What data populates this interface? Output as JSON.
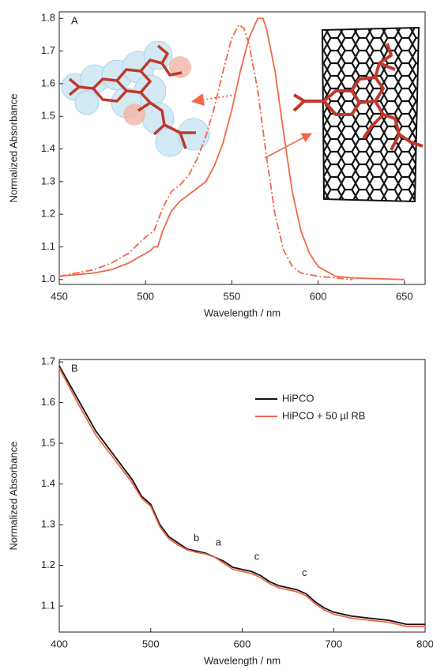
{
  "chart_data": [
    {
      "type": "line",
      "label": "A",
      "xlabel": "Wavelength / nm",
      "ylabel": "Normalized Absorbance",
      "xlim": [
        450,
        662
      ],
      "ylim": [
        0.985,
        1.82
      ],
      "xticks": [
        450,
        500,
        550,
        600,
        650
      ],
      "yticks": [
        {
          "value": 1,
          "label": "1.0"
        },
        1.1,
        1.2,
        1.3,
        1.4,
        1.5,
        1.6,
        1.7,
        1.8
      ],
      "series": [
        {
          "color": "#f0674a",
          "linestyle": "solid",
          "x": [
            450,
            470,
            480,
            490,
            500,
            503,
            505,
            507,
            510,
            515,
            520,
            525,
            530,
            535,
            540,
            545,
            550,
            555,
            560,
            565,
            568,
            570,
            575,
            580,
            585,
            590,
            595,
            600,
            610,
            620,
            650
          ],
          "values": [
            1.01,
            1.02,
            1.03,
            1.05,
            1.08,
            1.09,
            1.1,
            1.1,
            1.15,
            1.21,
            1.24,
            1.26,
            1.28,
            1.3,
            1.35,
            1.42,
            1.52,
            1.64,
            1.74,
            1.8,
            1.8,
            1.77,
            1.64,
            1.45,
            1.27,
            1.15,
            1.08,
            1.04,
            1.01,
            1.005,
            1.0
          ]
        },
        {
          "color": "#f0674a",
          "linestyle": "dashdot",
          "x": [
            450,
            470,
            480,
            490,
            500,
            505,
            510,
            515,
            520,
            525,
            530,
            535,
            540,
            545,
            550,
            554,
            557,
            560,
            565,
            570,
            575,
            580,
            585,
            590,
            600,
            620
          ],
          "values": [
            1.01,
            1.03,
            1.05,
            1.08,
            1.13,
            1.15,
            1.22,
            1.27,
            1.29,
            1.32,
            1.37,
            1.44,
            1.53,
            1.64,
            1.74,
            1.78,
            1.77,
            1.72,
            1.58,
            1.38,
            1.2,
            1.09,
            1.04,
            1.02,
            1.01,
            1.0
          ]
        }
      ]
    },
    {
      "type": "line",
      "label": "B",
      "xlabel": "Wavelength / nm",
      "ylabel": "Normalized Absorbance",
      "xlim": [
        400,
        800
      ],
      "ylim": [
        1.036,
        1.706
      ],
      "xticks": [
        400,
        500,
        600,
        700,
        800
      ],
      "yticks": [
        1.1,
        1.2,
        1.3,
        1.4,
        1.5,
        1.6,
        1.7
      ],
      "legend": "upper right",
      "series": [
        {
          "name": "HiPCO",
          "color": "#111111",
          "linestyle": "solid",
          "x": [
            400,
            420,
            440,
            460,
            480,
            490,
            500,
            510,
            520,
            530,
            540,
            550,
            560,
            570,
            580,
            590,
            600,
            610,
            620,
            630,
            640,
            650,
            660,
            670,
            680,
            690,
            700,
            720,
            740,
            760,
            780,
            800
          ],
          "values": [
            1.69,
            1.61,
            1.53,
            1.47,
            1.41,
            1.37,
            1.35,
            1.3,
            1.27,
            1.255,
            1.24,
            1.235,
            1.23,
            1.22,
            1.21,
            1.195,
            1.19,
            1.185,
            1.175,
            1.16,
            1.15,
            1.145,
            1.14,
            1.13,
            1.11,
            1.095,
            1.085,
            1.075,
            1.07,
            1.065,
            1.055,
            1.055
          ]
        },
        {
          "name": "HiPCO + 50 µl RB",
          "color": "#f0674a",
          "linestyle": "solid",
          "x": [
            400,
            420,
            440,
            460,
            480,
            490,
            500,
            510,
            520,
            530,
            540,
            550,
            560,
            570,
            580,
            590,
            600,
            610,
            620,
            630,
            640,
            650,
            660,
            670,
            680,
            690,
            700,
            720,
            740,
            760,
            780,
            800
          ],
          "values": [
            1.685,
            1.6,
            1.52,
            1.462,
            1.402,
            1.365,
            1.345,
            1.295,
            1.265,
            1.25,
            1.238,
            1.232,
            1.228,
            1.22,
            1.205,
            1.19,
            1.185,
            1.18,
            1.17,
            1.155,
            1.145,
            1.14,
            1.135,
            1.125,
            1.105,
            1.09,
            1.08,
            1.07,
            1.065,
            1.06,
            1.05,
            1.05
          ]
        }
      ],
      "annotations": [
        {
          "text": "b",
          "x": 550,
          "y": 1.25
        },
        {
          "text": "a",
          "x": 574,
          "y": 1.24
        },
        {
          "text": "c",
          "x": 616,
          "y": 1.205
        },
        {
          "text": "c",
          "x": 668,
          "y": 1.165
        }
      ]
    }
  ]
}
